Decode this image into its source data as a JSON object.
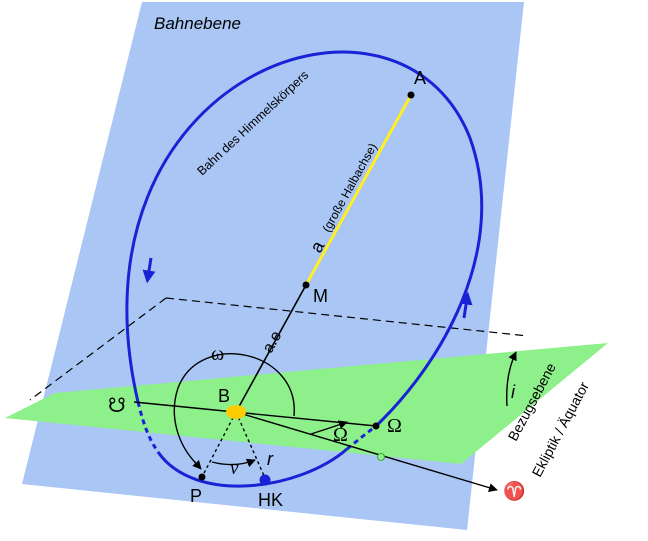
{
  "labels": {
    "plane_title": "Bahnebene",
    "orbit_label": "Bahn des Himmelskörpers",
    "apoapsis": "A",
    "semi_major_axis": "a",
    "semi_major_axis_note": "(große Halbachse)",
    "center": "M",
    "focal_distance": "a.e",
    "focus": "B",
    "arg_periapsis": "ω",
    "descending_node": "☋",
    "ascending_node": "Ω",
    "node_angle": "Ω",
    "true_anomaly": "ν",
    "radius": "r",
    "periapsis": "P",
    "body": "HK",
    "vernal_equinox": "♈",
    "inclination": "i",
    "reference_plane_line1": "Bezugsebene",
    "reference_plane_line2": "Ekliptik / Äquator"
  },
  "colors": {
    "orbital_plane": "#a9c6f5",
    "reference_plane": "#8ef08b",
    "orbit": "#1a22d6",
    "semi_major_axis": "#ffee22",
    "focus": "#ffcc00",
    "ink": "#000000"
  }
}
